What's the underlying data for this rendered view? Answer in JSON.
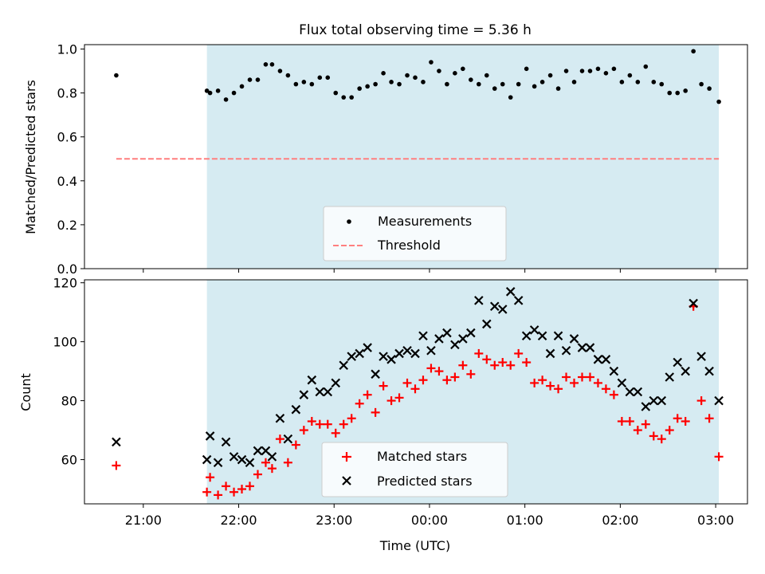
{
  "chart_data": [
    {
      "type": "scatter",
      "title": "Flux total observing time = 5.36 h",
      "xlabel": "",
      "ylabel": "Matched/Predicted stars",
      "ylim": [
        0,
        1.02
      ],
      "yticks": [
        "0.0",
        "0.2",
        "0.4",
        "0.6",
        "0.8",
        "1.0"
      ],
      "xlim": [
        "20:23",
        "03:20"
      ],
      "observing_window": [
        "21:40",
        "03:02"
      ],
      "threshold": {
        "name": "Threshold",
        "value": 0.5,
        "x": [
          "20:43",
          "03:02"
        ],
        "color": "#ff7f7f"
      },
      "legend": {
        "placement": "lower-center",
        "entries": [
          "Measurements",
          "Threshold"
        ]
      },
      "series": [
        {
          "name": "Measurements",
          "marker": "dot",
          "color": "#000000",
          "x": [
            "20:43",
            "21:40",
            "21:42",
            "21:47",
            "21:52",
            "21:57",
            "22:02",
            "22:07",
            "22:12",
            "22:17",
            "22:21",
            "22:26",
            "22:31",
            "22:36",
            "22:41",
            "22:46",
            "22:51",
            "22:56",
            "23:01",
            "23:06",
            "23:11",
            "23:16",
            "23:21",
            "23:26",
            "23:31",
            "23:36",
            "23:41",
            "23:46",
            "23:51",
            "23:56",
            "00:01",
            "00:06",
            "00:11",
            "00:16",
            "00:21",
            "00:26",
            "00:31",
            "00:36",
            "00:41",
            "00:46",
            "00:51",
            "00:56",
            "01:01",
            "01:06",
            "01:11",
            "01:16",
            "01:21",
            "01:26",
            "01:31",
            "01:36",
            "01:41",
            "01:46",
            "01:51",
            "01:56",
            "02:01",
            "02:06",
            "02:11",
            "02:16",
            "02:21",
            "02:26",
            "02:31",
            "02:36",
            "02:41",
            "02:46",
            "02:51",
            "02:56",
            "03:02"
          ],
          "y": [
            0.88,
            0.81,
            0.8,
            0.81,
            0.77,
            0.8,
            0.83,
            0.86,
            0.86,
            0.93,
            0.93,
            0.9,
            0.88,
            0.84,
            0.85,
            0.84,
            0.87,
            0.87,
            0.8,
            0.78,
            0.78,
            0.82,
            0.83,
            0.84,
            0.89,
            0.85,
            0.84,
            0.88,
            0.87,
            0.85,
            0.94,
            0.9,
            0.84,
            0.89,
            0.91,
            0.86,
            0.84,
            0.88,
            0.82,
            0.84,
            0.78,
            0.84,
            0.91,
            0.83,
            0.85,
            0.88,
            0.82,
            0.9,
            0.85,
            0.9,
            0.9,
            0.91,
            0.89,
            0.91,
            0.85,
            0.88,
            0.85,
            0.92,
            0.85,
            0.84,
            0.8,
            0.8,
            0.81,
            0.99,
            0.84,
            0.82,
            0.76
          ]
        }
      ]
    },
    {
      "type": "scatter",
      "title": "",
      "xlabel": "Time (UTC)",
      "ylabel": "Count",
      "ylim": [
        45,
        121
      ],
      "yticks": [
        "60",
        "80",
        "100",
        "120"
      ],
      "xticks": [
        "21:00",
        "22:00",
        "23:00",
        "00:00",
        "01:00",
        "02:00",
        "03:00"
      ],
      "xlim": [
        "20:23",
        "03:20"
      ],
      "observing_window": [
        "21:40",
        "03:02"
      ],
      "legend": {
        "placement": "lower-center",
        "entries": [
          "Matched stars",
          "Predicted stars"
        ]
      },
      "series": [
        {
          "name": "Matched stars",
          "marker": "plus",
          "color": "#ff0000",
          "x": [
            "20:43",
            "21:40",
            "21:42",
            "21:47",
            "21:52",
            "21:57",
            "22:02",
            "22:07",
            "22:12",
            "22:17",
            "22:21",
            "22:26",
            "22:31",
            "22:36",
            "22:41",
            "22:46",
            "22:51",
            "22:56",
            "23:01",
            "23:06",
            "23:11",
            "23:16",
            "23:21",
            "23:26",
            "23:31",
            "23:36",
            "23:41",
            "23:46",
            "23:51",
            "23:56",
            "00:01",
            "00:06",
            "00:11",
            "00:16",
            "00:21",
            "00:26",
            "00:31",
            "00:36",
            "00:41",
            "00:46",
            "00:51",
            "00:56",
            "01:01",
            "01:06",
            "01:11",
            "01:16",
            "01:21",
            "01:26",
            "01:31",
            "01:36",
            "01:41",
            "01:46",
            "01:51",
            "01:56",
            "02:01",
            "02:06",
            "02:11",
            "02:16",
            "02:21",
            "02:26",
            "02:31",
            "02:36",
            "02:41",
            "02:46",
            "02:51",
            "02:56",
            "03:02"
          ],
          "y": [
            58,
            49,
            54,
            48,
            51,
            49,
            50,
            51,
            55,
            59,
            57,
            67,
            59,
            65,
            70,
            73,
            72,
            72,
            69,
            72,
            74,
            79,
            82,
            76,
            85,
            80,
            81,
            86,
            84,
            87,
            91,
            90,
            87,
            88,
            92,
            89,
            96,
            94,
            92,
            93,
            92,
            96,
            93,
            86,
            87,
            85,
            84,
            88,
            86,
            88,
            88,
            86,
            84,
            82,
            73,
            73,
            70,
            72,
            68,
            67,
            70,
            74,
            73,
            112,
            80,
            74,
            61
          ]
        },
        {
          "name": "Predicted stars",
          "marker": "x",
          "color": "#000000",
          "x": [
            "20:43",
            "21:40",
            "21:42",
            "21:47",
            "21:52",
            "21:57",
            "22:02",
            "22:07",
            "22:12",
            "22:17",
            "22:21",
            "22:26",
            "22:31",
            "22:36",
            "22:41",
            "22:46",
            "22:51",
            "22:56",
            "23:01",
            "23:06",
            "23:11",
            "23:16",
            "23:21",
            "23:26",
            "23:31",
            "23:36",
            "23:41",
            "23:46",
            "23:51",
            "23:56",
            "00:01",
            "00:06",
            "00:11",
            "00:16",
            "00:21",
            "00:26",
            "00:31",
            "00:36",
            "00:41",
            "00:46",
            "00:51",
            "00:56",
            "01:01",
            "01:06",
            "01:11",
            "01:16",
            "01:21",
            "01:26",
            "01:31",
            "01:36",
            "01:41",
            "01:46",
            "01:51",
            "01:56",
            "02:01",
            "02:06",
            "02:11",
            "02:16",
            "02:21",
            "02:26",
            "02:31",
            "02:36",
            "02:41",
            "02:46",
            "02:51",
            "02:56",
            "03:02"
          ],
          "y": [
            66,
            60,
            68,
            59,
            66,
            61,
            60,
            59,
            63,
            63,
            61,
            74,
            67,
            77,
            82,
            87,
            83,
            83,
            86,
            92,
            95,
            96,
            98,
            89,
            95,
            94,
            96,
            97,
            96,
            102,
            97,
            101,
            103,
            99,
            101,
            103,
            114,
            106,
            112,
            111,
            117,
            114,
            102,
            104,
            102,
            96,
            102,
            97,
            101,
            98,
            98,
            94,
            94,
            90,
            86,
            83,
            83,
            78,
            80,
            80,
            88,
            93,
            90,
            113,
            95,
            90,
            80
          ]
        }
      ]
    }
  ],
  "colors": {
    "observing_band": "#add8e6",
    "threshold": "#ff7f7f",
    "matched": "#ff0000",
    "predicted": "#000000"
  }
}
